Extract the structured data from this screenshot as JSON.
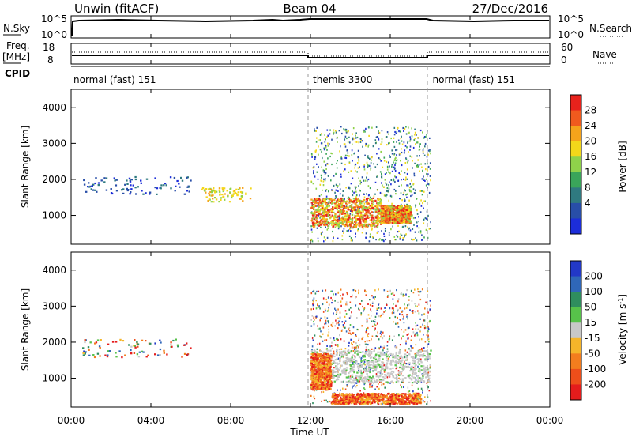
{
  "header": {
    "station": "Unwin (fitACF)",
    "beam": "Beam 04",
    "date": "27/Dec/2016"
  },
  "left_labels": {
    "nsky": "N.Sky",
    "freq_line1": "Freq.",
    "freq_line2": "[MHz]",
    "cpid": "CPID"
  },
  "right_labels": {
    "nsearch": "N.Search",
    "nave": "Nave"
  },
  "noise_axis": {
    "left_ticks": [
      "10^5",
      "10^0"
    ],
    "right_ticks": [
      "10^5",
      "10^0"
    ]
  },
  "freq_axis": {
    "left_ticks": [
      "18",
      "8"
    ],
    "right_ticks": [
      "60",
      "0"
    ]
  },
  "cpid_segments": [
    {
      "label": "normal (fast) 151",
      "start": 0,
      "end": 12
    },
    {
      "label": "themis 3300",
      "start": 12,
      "end": 18
    },
    {
      "label": "normal (fast) 151",
      "start": 18,
      "end": 24
    }
  ],
  "x_axis": {
    "label": "Time UT",
    "ticks": [
      "00:00",
      "04:00",
      "08:00",
      "12:00",
      "16:00",
      "20:00",
      "00:00"
    ]
  },
  "power_colorbar": {
    "label": "Power [dB]",
    "ticks": [
      "28",
      "24",
      "20",
      "16",
      "12",
      "8",
      "4"
    ],
    "colors": [
      "#e8221c",
      "#f05a1e",
      "#f5a31b",
      "#f3d71a",
      "#8fd24a",
      "#3aa55a",
      "#2f7a80",
      "#284ea8",
      "#1c2dd9"
    ]
  },
  "velocity_colorbar": {
    "label_main": "Velocity [m s",
    "label_sup": "-1",
    "label_end": "]",
    "ticks": [
      "200",
      "100",
      "50",
      "15",
      "-15",
      "-50",
      "-100",
      "-200"
    ],
    "colors": [
      "#2238c7",
      "#2f67b8",
      "#2f8e5e",
      "#57c24a",
      "#c8c8c8",
      "#f5b52a",
      "#f37d1e",
      "#ee4e1a",
      "#e51c1c"
    ]
  },
  "chart_data": [
    {
      "type": "heatmap",
      "variable": "Power",
      "ylabel": "Slant Range [km]",
      "yticks": [
        "1000",
        "2000",
        "3000",
        "4000"
      ],
      "ylim": [
        200,
        4500
      ],
      "xlim": [
        0,
        24
      ],
      "x_unit": "hours UT",
      "regions": [
        {
          "t0": 12.0,
          "t1": 18.0,
          "r0": 300,
          "r1": 3500,
          "level": "scatter"
        },
        {
          "t0": 12.0,
          "t1": 15.5,
          "r0": 700,
          "r1": 1500,
          "level": "high"
        },
        {
          "t0": 15.5,
          "t1": 17.0,
          "r0": 800,
          "r1": 1300,
          "level": "high"
        },
        {
          "t0": 0.5,
          "t1": 6.0,
          "r0": 1600,
          "r1": 2100,
          "level": "low"
        },
        {
          "t0": 6.5,
          "t1": 9.0,
          "r0": 1400,
          "r1": 1800,
          "level": "medium"
        }
      ]
    },
    {
      "type": "heatmap",
      "variable": "Velocity",
      "ylabel": "Slant Range [km]",
      "yticks": [
        "1000",
        "2000",
        "3000",
        "4000"
      ],
      "ylim": [
        200,
        4500
      ],
      "xlim": [
        0,
        24
      ],
      "x_unit": "hours UT",
      "regions": [
        {
          "t0": 12.0,
          "t1": 18.0,
          "r0": 300,
          "r1": 3500,
          "level": "scatter"
        },
        {
          "t0": 12.0,
          "t1": 18.0,
          "r0": 900,
          "r1": 1800,
          "level": "near-zero"
        },
        {
          "t0": 12.0,
          "t1": 13.0,
          "r0": 700,
          "r1": 1700,
          "level": "negative"
        },
        {
          "t0": 13.0,
          "t1": 17.5,
          "r0": 300,
          "r1": 600,
          "level": "negative"
        },
        {
          "t0": 0.5,
          "t1": 6.0,
          "r0": 1600,
          "r1": 2100,
          "level": "mixed"
        }
      ]
    }
  ]
}
